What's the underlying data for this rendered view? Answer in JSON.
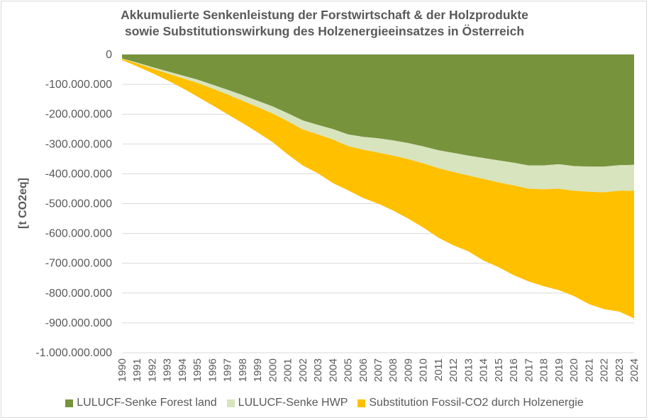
{
  "chart_data": {
    "type": "area",
    "stacked": true,
    "title_lines": [
      "Akkumulierte Senkenleistung der Forstwirtschaft & der Holzprodukte",
      "sowie Substitutionswirkung  des Holzenergieeinsatzes  in Österreich"
    ],
    "ylabel": "[t CO2eq]",
    "xlabel": "",
    "ylim": [
      -1000000000,
      0
    ],
    "yticks": [
      0,
      -100000000,
      -200000000,
      -300000000,
      -400000000,
      -500000000,
      -600000000,
      -700000000,
      -800000000,
      -900000000,
      -1000000000
    ],
    "ytick_labels": [
      "0",
      "-100.000.000",
      "-200.000.000",
      "-300.000.000",
      "-400.000.000",
      "-500.000.000",
      "-600.000.000",
      "-700.000.000",
      "-800.000.000",
      "-900.000.000",
      "-1.000.000.000"
    ],
    "grid": true,
    "legend_position": "bottom",
    "x": [
      "1990",
      "1991",
      "1992",
      "1993",
      "1994",
      "1995",
      "1996",
      "1997",
      "1998",
      "1999",
      "2000",
      "2001",
      "2002",
      "2003",
      "2004",
      "2005",
      "2006",
      "2007",
      "2008",
      "2009",
      "2010",
      "2011",
      "2012",
      "2013",
      "2014",
      "2015",
      "2016",
      "2017",
      "2018",
      "2019",
      "2020",
      "2021",
      "2022",
      "2023",
      "2024"
    ],
    "series": [
      {
        "name": "LULUCF-Senke Forest land",
        "color": "#77933c",
        "values": [
          -13000000,
          -27000000,
          -42000000,
          -56000000,
          -70000000,
          -84000000,
          -101000000,
          -118000000,
          -136000000,
          -155000000,
          -174000000,
          -197000000,
          -221000000,
          -236000000,
          -250000000,
          -268000000,
          -276000000,
          -281000000,
          -288000000,
          -297000000,
          -308000000,
          -321000000,
          -330000000,
          -339000000,
          -347000000,
          -355000000,
          -363000000,
          -372000000,
          -372000000,
          -368000000,
          -374000000,
          -376000000,
          -376000000,
          -371000000,
          -370000000
        ]
      },
      {
        "name": "LULUCF-Senke HWP",
        "color": "#d7e4bd",
        "values": [
          -1000000,
          -3000000,
          -5000000,
          -7000000,
          -9000000,
          -11000000,
          -13000000,
          -16000000,
          -19000000,
          -21000000,
          -24000000,
          -27000000,
          -30000000,
          -32000000,
          -35000000,
          -39000000,
          -43000000,
          -48000000,
          -51000000,
          -54000000,
          -57000000,
          -60000000,
          -64000000,
          -67000000,
          -70000000,
          -74000000,
          -76000000,
          -78000000,
          -80000000,
          -82000000,
          -83000000,
          -84000000,
          -86000000,
          -86000000,
          -87000000
        ]
      },
      {
        "name": "Substitution Fossil-CO2 durch Holzenergie",
        "color": "#ffc000",
        "values": [
          -4000000,
          -10000000,
          -15000000,
          -23000000,
          -33000000,
          -46000000,
          -56000000,
          -66000000,
          -75000000,
          -85000000,
          -96000000,
          -111000000,
          -121000000,
          -130000000,
          -146000000,
          -148000000,
          -162000000,
          -171000000,
          -184000000,
          -199000000,
          -215000000,
          -233000000,
          -246000000,
          -254000000,
          -274000000,
          -284000000,
          -301000000,
          -311000000,
          -325000000,
          -340000000,
          -353000000,
          -377000000,
          -392000000,
          -405000000,
          -428000000
        ]
      }
    ]
  }
}
